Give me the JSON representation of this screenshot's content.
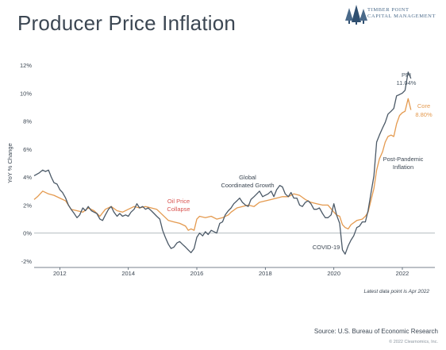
{
  "title": "Producer Price Inflation",
  "logo": {
    "line1": "Timber Point",
    "line2": "Capital Management",
    "icon": "pine-trees-icon"
  },
  "chart_data": {
    "type": "line",
    "ylabel": "YoY % Change",
    "xlabel": "",
    "ylim": [
      -2,
      12
    ],
    "xlim": [
      2011.25,
      2022.95
    ],
    "yticks": [
      -2,
      0,
      2,
      4,
      6,
      8,
      10,
      12
    ],
    "ytick_labels": [
      "-2%",
      "0%",
      "2%",
      "4%",
      "6%",
      "8%",
      "10%",
      "12%"
    ],
    "xticks": [
      2012,
      2014,
      2016,
      2018,
      2020,
      2022
    ],
    "xtick_labels": [
      "2012",
      "2014",
      "2016",
      "2018",
      "2020",
      "2022"
    ],
    "grid": false,
    "zero_line": true,
    "series": [
      {
        "name": "PPI",
        "color": "#4b5967",
        "end_label": "PPI",
        "end_value_label": "11.04%",
        "points": [
          [
            2011.25,
            4.1
          ],
          [
            2011.4,
            4.3
          ],
          [
            2011.5,
            4.5
          ],
          [
            2011.58,
            4.4
          ],
          [
            2011.67,
            4.5
          ],
          [
            2011.75,
            4.0
          ],
          [
            2011.83,
            3.6
          ],
          [
            2011.92,
            3.5
          ],
          [
            2012.0,
            3.1
          ],
          [
            2012.08,
            2.9
          ],
          [
            2012.17,
            2.5
          ],
          [
            2012.25,
            2.0
          ],
          [
            2012.33,
            1.7
          ],
          [
            2012.42,
            1.4
          ],
          [
            2012.5,
            1.1
          ],
          [
            2012.58,
            1.3
          ],
          [
            2012.67,
            1.8
          ],
          [
            2012.75,
            1.6
          ],
          [
            2012.83,
            1.9
          ],
          [
            2012.92,
            1.6
          ],
          [
            2013.0,
            1.5
          ],
          [
            2013.08,
            1.4
          ],
          [
            2013.17,
            1.0
          ],
          [
            2013.25,
            0.9
          ],
          [
            2013.33,
            1.3
          ],
          [
            2013.42,
            1.7
          ],
          [
            2013.5,
            1.9
          ],
          [
            2013.58,
            1.5
          ],
          [
            2013.67,
            1.2
          ],
          [
            2013.75,
            1.4
          ],
          [
            2013.83,
            1.2
          ],
          [
            2013.92,
            1.3
          ],
          [
            2014.0,
            1.2
          ],
          [
            2014.08,
            1.5
          ],
          [
            2014.17,
            1.7
          ],
          [
            2014.25,
            2.1
          ],
          [
            2014.33,
            1.8
          ],
          [
            2014.42,
            1.9
          ],
          [
            2014.5,
            1.7
          ],
          [
            2014.58,
            1.8
          ],
          [
            2014.67,
            1.6
          ],
          [
            2014.75,
            1.4
          ],
          [
            2014.83,
            1.2
          ],
          [
            2014.92,
            1.0
          ],
          [
            2015.0,
            0.2
          ],
          [
            2015.08,
            -0.3
          ],
          [
            2015.17,
            -0.8
          ],
          [
            2015.25,
            -1.1
          ],
          [
            2015.33,
            -1.0
          ],
          [
            2015.42,
            -0.7
          ],
          [
            2015.5,
            -0.6
          ],
          [
            2015.58,
            -0.8
          ],
          [
            2015.67,
            -1.0
          ],
          [
            2015.75,
            -1.2
          ],
          [
            2015.83,
            -1.4
          ],
          [
            2015.92,
            -1.1
          ],
          [
            2016.0,
            -0.3
          ],
          [
            2016.08,
            0.0
          ],
          [
            2016.17,
            -0.2
          ],
          [
            2016.25,
            0.1
          ],
          [
            2016.33,
            -0.1
          ],
          [
            2016.42,
            0.2
          ],
          [
            2016.5,
            0.1
          ],
          [
            2016.58,
            0.0
          ],
          [
            2016.67,
            0.7
          ],
          [
            2016.75,
            0.8
          ],
          [
            2016.83,
            1.3
          ],
          [
            2016.92,
            1.6
          ],
          [
            2017.0,
            1.8
          ],
          [
            2017.08,
            2.1
          ],
          [
            2017.17,
            2.3
          ],
          [
            2017.25,
            2.5
          ],
          [
            2017.33,
            2.2
          ],
          [
            2017.42,
            2.0
          ],
          [
            2017.5,
            1.9
          ],
          [
            2017.58,
            2.4
          ],
          [
            2017.67,
            2.6
          ],
          [
            2017.75,
            2.8
          ],
          [
            2017.83,
            3.0
          ],
          [
            2017.92,
            2.6
          ],
          [
            2018.0,
            2.7
          ],
          [
            2018.08,
            2.8
          ],
          [
            2018.17,
            3.0
          ],
          [
            2018.25,
            2.6
          ],
          [
            2018.33,
            3.1
          ],
          [
            2018.42,
            3.4
          ],
          [
            2018.5,
            3.3
          ],
          [
            2018.58,
            2.8
          ],
          [
            2018.67,
            2.6
          ],
          [
            2018.75,
            2.9
          ],
          [
            2018.83,
            2.5
          ],
          [
            2018.92,
            2.5
          ],
          [
            2019.0,
            2.0
          ],
          [
            2019.08,
            1.9
          ],
          [
            2019.17,
            2.2
          ],
          [
            2019.25,
            2.3
          ],
          [
            2019.33,
            2.1
          ],
          [
            2019.42,
            1.7
          ],
          [
            2019.5,
            1.7
          ],
          [
            2019.58,
            1.8
          ],
          [
            2019.67,
            1.4
          ],
          [
            2019.75,
            1.1
          ],
          [
            2019.83,
            1.1
          ],
          [
            2019.92,
            1.3
          ],
          [
            2020.0,
            2.1
          ],
          [
            2020.08,
            1.3
          ],
          [
            2020.17,
            0.7
          ],
          [
            2020.25,
            -1.2
          ],
          [
            2020.33,
            -1.5
          ],
          [
            2020.42,
            -0.9
          ],
          [
            2020.5,
            -0.5
          ],
          [
            2020.58,
            -0.2
          ],
          [
            2020.67,
            0.4
          ],
          [
            2020.75,
            0.5
          ],
          [
            2020.83,
            0.8
          ],
          [
            2020.92,
            0.8
          ],
          [
            2021.0,
            1.6
          ],
          [
            2021.08,
            2.8
          ],
          [
            2021.17,
            4.1
          ],
          [
            2021.25,
            6.5
          ],
          [
            2021.33,
            7.0
          ],
          [
            2021.42,
            7.5
          ],
          [
            2021.5,
            7.9
          ],
          [
            2021.58,
            8.5
          ],
          [
            2021.67,
            8.7
          ],
          [
            2021.75,
            8.9
          ],
          [
            2021.83,
            9.8
          ],
          [
            2021.92,
            9.9
          ],
          [
            2022.0,
            10.0
          ],
          [
            2022.08,
            10.2
          ],
          [
            2022.17,
            11.5
          ],
          [
            2022.25,
            11.04
          ]
        ]
      },
      {
        "name": "Core",
        "color": "#e49a4f",
        "end_label": "Core",
        "end_value_label": "8.80%",
        "points": [
          [
            2011.25,
            2.4
          ],
          [
            2011.35,
            2.6
          ],
          [
            2011.5,
            3.0
          ],
          [
            2011.67,
            2.8
          ],
          [
            2011.83,
            2.7
          ],
          [
            2012.0,
            2.5
          ],
          [
            2012.17,
            2.3
          ],
          [
            2012.33,
            1.7
          ],
          [
            2012.5,
            1.6
          ],
          [
            2012.67,
            1.5
          ],
          [
            2012.83,
            1.8
          ],
          [
            2013.0,
            1.6
          ],
          [
            2013.17,
            1.2
          ],
          [
            2013.33,
            1.7
          ],
          [
            2013.5,
            1.9
          ],
          [
            2013.67,
            1.6
          ],
          [
            2013.83,
            1.5
          ],
          [
            2014.0,
            1.7
          ],
          [
            2014.17,
            1.9
          ],
          [
            2014.33,
            1.8
          ],
          [
            2014.5,
            1.9
          ],
          [
            2014.67,
            1.8
          ],
          [
            2014.83,
            1.7
          ],
          [
            2015.0,
            1.3
          ],
          [
            2015.17,
            0.9
          ],
          [
            2015.33,
            0.8
          ],
          [
            2015.5,
            0.7
          ],
          [
            2015.67,
            0.5
          ],
          [
            2015.75,
            0.2
          ],
          [
            2015.83,
            0.3
          ],
          [
            2015.92,
            0.2
          ],
          [
            2016.0,
            1.0
          ],
          [
            2016.08,
            1.2
          ],
          [
            2016.25,
            1.1
          ],
          [
            2016.42,
            1.2
          ],
          [
            2016.58,
            1.0
          ],
          [
            2016.75,
            1.1
          ],
          [
            2016.92,
            1.3
          ],
          [
            2017.0,
            1.5
          ],
          [
            2017.17,
            1.8
          ],
          [
            2017.33,
            1.9
          ],
          [
            2017.5,
            2.0
          ],
          [
            2017.67,
            1.9
          ],
          [
            2017.83,
            2.2
          ],
          [
            2018.0,
            2.3
          ],
          [
            2018.17,
            2.4
          ],
          [
            2018.33,
            2.5
          ],
          [
            2018.5,
            2.6
          ],
          [
            2018.67,
            2.6
          ],
          [
            2018.83,
            2.8
          ],
          [
            2019.0,
            2.7
          ],
          [
            2019.17,
            2.4
          ],
          [
            2019.33,
            2.2
          ],
          [
            2019.5,
            2.1
          ],
          [
            2019.67,
            2.0
          ],
          [
            2019.83,
            2.0
          ],
          [
            2020.0,
            1.5
          ],
          [
            2020.08,
            1.3
          ],
          [
            2020.17,
            1.2
          ],
          [
            2020.25,
            0.6
          ],
          [
            2020.33,
            0.4
          ],
          [
            2020.42,
            0.3
          ],
          [
            2020.5,
            0.6
          ],
          [
            2020.67,
            0.9
          ],
          [
            2020.83,
            1.0
          ],
          [
            2020.92,
            1.2
          ],
          [
            2021.0,
            1.5
          ],
          [
            2021.08,
            2.3
          ],
          [
            2021.17,
            3.2
          ],
          [
            2021.25,
            4.5
          ],
          [
            2021.33,
            5.3
          ],
          [
            2021.42,
            5.8
          ],
          [
            2021.5,
            6.5
          ],
          [
            2021.58,
            6.9
          ],
          [
            2021.67,
            7.0
          ],
          [
            2021.75,
            6.9
          ],
          [
            2021.83,
            7.8
          ],
          [
            2021.92,
            8.4
          ],
          [
            2022.0,
            8.6
          ],
          [
            2022.08,
            8.7
          ],
          [
            2022.17,
            9.6
          ],
          [
            2022.25,
            8.8
          ]
        ]
      }
    ],
    "annotations": [
      {
        "lines": [
          "Oil Price",
          "Collapse"
        ],
        "color": "#d9534f"
      },
      {
        "lines": [
          "Global",
          "Coordinated Growth"
        ],
        "color": "#3c4753"
      },
      {
        "lines": [
          "COVID-19"
        ],
        "color": "#3c4753"
      },
      {
        "lines": [
          "Post-Pandemic",
          "Inflation"
        ],
        "color": "#3c4753"
      }
    ],
    "footnote": "Latest data point is Apr 2022"
  },
  "source": "Source: U.S. Bureau of Economic Research",
  "copyright": "© 2022 Clearnomics, Inc."
}
